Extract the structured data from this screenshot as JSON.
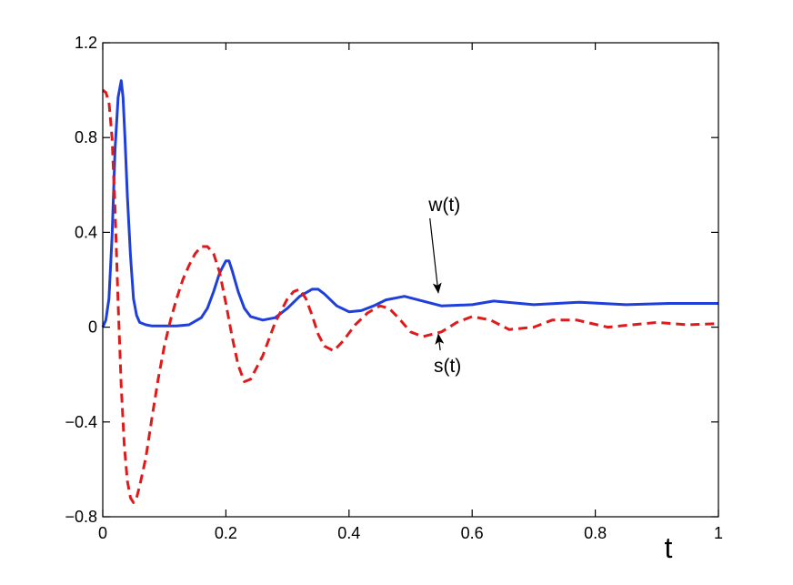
{
  "chart_data": {
    "type": "line",
    "xlabel": "t",
    "ylabel": "",
    "title": "",
    "xlim": [
      0,
      1
    ],
    "ylim": [
      -0.8,
      1.2
    ],
    "grid": false,
    "x_ticks": [
      0,
      0.2,
      0.4,
      0.6,
      0.8,
      1
    ],
    "x_tick_labels": [
      "0",
      "0.2",
      "0.4",
      "0.6",
      "0.8",
      "1"
    ],
    "y_ticks": [
      -0.8,
      -0.4,
      0,
      0.4,
      0.8,
      1.2
    ],
    "y_tick_labels": [
      "−0.8",
      "−0.4",
      "0",
      "0.4",
      "0.8",
      "1.2"
    ],
    "series": [
      {
        "name": "w(t)",
        "color": "#1f3fdd",
        "dash": "solid",
        "x": [
          0,
          0.005,
          0.01,
          0.015,
          0.02,
          0.025,
          0.03,
          0.033,
          0.036,
          0.04,
          0.045,
          0.05,
          0.055,
          0.06,
          0.07,
          0.08,
          0.1,
          0.12,
          0.14,
          0.16,
          0.17,
          0.18,
          0.19,
          0.2,
          0.205,
          0.21,
          0.22,
          0.23,
          0.24,
          0.26,
          0.28,
          0.3,
          0.32,
          0.34,
          0.35,
          0.36,
          0.38,
          0.4,
          0.42,
          0.44,
          0.46,
          0.49,
          0.52,
          0.55,
          0.6,
          0.635,
          0.7,
          0.775,
          0.85,
          0.92,
          1.0
        ],
        "y": [
          0.0,
          0.03,
          0.12,
          0.38,
          0.75,
          0.97,
          1.04,
          0.97,
          0.8,
          0.55,
          0.3,
          0.12,
          0.05,
          0.02,
          0.01,
          0.005,
          0.005,
          0.005,
          0.01,
          0.04,
          0.08,
          0.15,
          0.23,
          0.28,
          0.28,
          0.24,
          0.15,
          0.08,
          0.045,
          0.03,
          0.04,
          0.08,
          0.13,
          0.16,
          0.16,
          0.14,
          0.09,
          0.065,
          0.07,
          0.09,
          0.115,
          0.13,
          0.11,
          0.09,
          0.095,
          0.11,
          0.095,
          0.105,
          0.095,
          0.1,
          0.1
        ]
      },
      {
        "name": "s(t)",
        "color": "#e01a1a",
        "dash": "dashed",
        "x": [
          0,
          0.005,
          0.01,
          0.015,
          0.02,
          0.025,
          0.03,
          0.035,
          0.04,
          0.045,
          0.05,
          0.055,
          0.06,
          0.07,
          0.08,
          0.09,
          0.1,
          0.11,
          0.12,
          0.13,
          0.14,
          0.15,
          0.16,
          0.17,
          0.18,
          0.19,
          0.2,
          0.21,
          0.22,
          0.23,
          0.24,
          0.26,
          0.28,
          0.3,
          0.31,
          0.32,
          0.33,
          0.34,
          0.35,
          0.36,
          0.375,
          0.39,
          0.41,
          0.43,
          0.45,
          0.465,
          0.48,
          0.5,
          0.52,
          0.55,
          0.575,
          0.6,
          0.63,
          0.66,
          0.7,
          0.73,
          0.77,
          0.82,
          0.86,
          0.9,
          0.95,
          1.0
        ],
        "y": [
          1.0,
          0.99,
          0.95,
          0.8,
          0.5,
          0.1,
          -0.25,
          -0.5,
          -0.65,
          -0.72,
          -0.74,
          -0.72,
          -0.67,
          -0.55,
          -0.38,
          -0.22,
          -0.08,
          0.03,
          0.12,
          0.2,
          0.26,
          0.31,
          0.34,
          0.34,
          0.31,
          0.23,
          0.1,
          -0.04,
          -0.16,
          -0.23,
          -0.22,
          -0.12,
          0.02,
          0.12,
          0.15,
          0.16,
          0.12,
          0.05,
          -0.03,
          -0.08,
          -0.1,
          -0.06,
          0.01,
          0.06,
          0.09,
          0.08,
          0.04,
          -0.02,
          -0.04,
          -0.02,
          0.02,
          0.045,
          0.03,
          -0.01,
          0.0,
          0.03,
          0.03,
          0.0,
          0.01,
          0.02,
          0.01,
          0.015
        ]
      }
    ],
    "annotations": [
      {
        "text": "w(t)",
        "label_at": [
          0.555,
          0.49
        ],
        "arrow_to": [
          0.545,
          0.145
        ]
      },
      {
        "text": "s(t)",
        "label_at": [
          0.56,
          -0.19
        ],
        "arrow_to": [
          0.545,
          -0.03
        ]
      }
    ]
  }
}
